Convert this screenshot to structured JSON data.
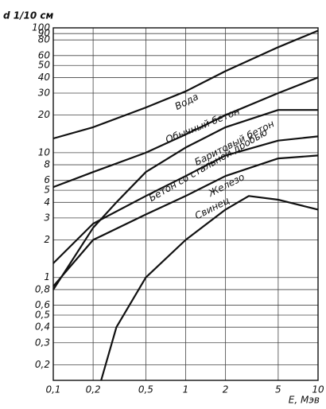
{
  "chart_data": {
    "type": "line",
    "y_label": "d 1/10 см",
    "x_label": "E, Мэв",
    "log_x": true,
    "log_y": true,
    "grid": true,
    "xlim": [
      0.1,
      10
    ],
    "ylim": [
      0.15,
      100
    ],
    "xticks": [
      {
        "value": 0.1,
        "label": "0,1"
      },
      {
        "value": 0.2,
        "label": "0,2"
      },
      {
        "value": 0.5,
        "label": "0,5"
      },
      1,
      2,
      5,
      10
    ],
    "yticks": [
      100,
      90,
      80,
      60,
      50,
      40,
      30,
      20,
      10,
      8,
      6,
      5,
      4,
      3,
      2,
      1,
      {
        "value": 0.8,
        "label": "0,8"
      },
      {
        "value": 0.6,
        "label": "0,6"
      },
      {
        "value": 0.5,
        "label": "0,5"
      },
      {
        "value": 0.4,
        "label": "0,4"
      },
      {
        "value": 0.3,
        "label": "0,3"
      },
      {
        "value": 0.2,
        "label": "0,2"
      }
    ],
    "series": [
      {
        "name": "Вода",
        "color": "#111",
        "x": [
          0.1,
          0.2,
          0.5,
          1,
          2,
          5,
          10
        ],
        "values": [
          13,
          16,
          23,
          31,
          45,
          70,
          95
        ]
      },
      {
        "name": "Обычный бетон",
        "color": "#111",
        "x": [
          0.1,
          0.2,
          0.5,
          1,
          2,
          5,
          10
        ],
        "values": [
          5.3,
          7,
          10,
          14,
          20,
          30,
          40
        ]
      },
      {
        "name": "Баритовый бетон",
        "color": "#111",
        "x": [
          0.1,
          0.2,
          0.3,
          0.5,
          1,
          2,
          5,
          10
        ],
        "values": [
          0.8,
          2.5,
          4,
          7,
          11,
          16,
          22,
          22
        ]
      },
      {
        "name": "Бетон со стальной дробью",
        "color": "#111",
        "x": [
          0.1,
          0.2,
          0.5,
          1,
          2,
          5,
          10
        ],
        "values": [
          1.3,
          2.7,
          4.5,
          6.5,
          9.5,
          12.5,
          13.5
        ]
      },
      {
        "name": "Железо",
        "color": "#111",
        "x": [
          0.1,
          0.2,
          0.5,
          1,
          2,
          5,
          10
        ],
        "values": [
          0.85,
          2,
          3.2,
          4.5,
          6.5,
          9,
          9.5
        ]
      },
      {
        "name": "Свинец",
        "color": "#111",
        "x": [
          0.23,
          0.3,
          0.5,
          1,
          2,
          3,
          5,
          10
        ],
        "values": [
          0.15,
          0.4,
          1,
          2,
          3.5,
          4.5,
          4.2,
          3.5
        ]
      }
    ]
  }
}
